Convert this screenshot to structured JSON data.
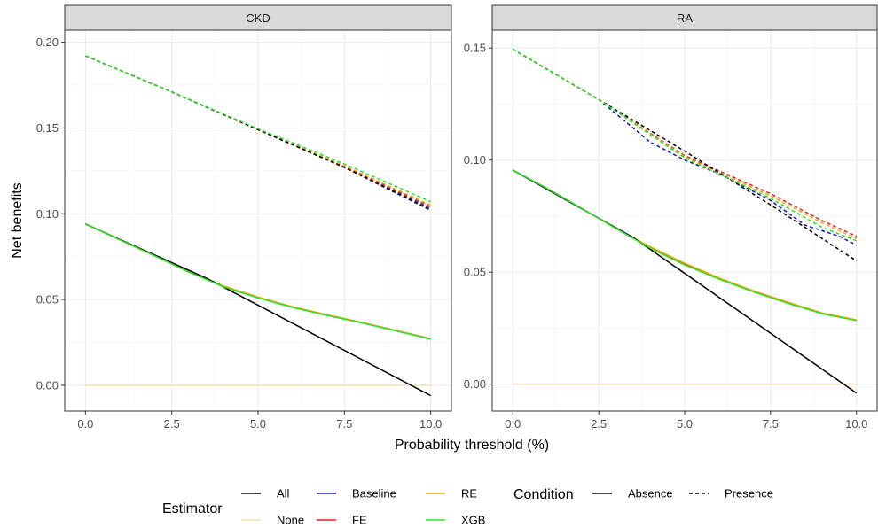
{
  "chart_data": {
    "type": "line",
    "xlabel": "Probability threshold (%)",
    "ylabel": "Net benefits",
    "legend_position": "bottom",
    "grid": true,
    "colors": {
      "All": "#000000",
      "None": "#f5deb3",
      "Baseline": "#1515b5",
      "FE": "#e02020",
      "RE": "#f0a800",
      "XGB": "#2ee02e"
    },
    "legend": {
      "estimator_title": "Estimator",
      "estimator_items": [
        "All",
        "None",
        "Baseline",
        "FE",
        "RE",
        "XGB"
      ],
      "condition_title": "Condition",
      "condition_items": [
        {
          "label": "Absence",
          "dash": "solid"
        },
        {
          "label": "Presence",
          "dash": "dashed"
        }
      ]
    },
    "panels": [
      {
        "title": "CKD",
        "xlim": [
          -0.6,
          10.6
        ],
        "ylim": [
          -0.015,
          0.207
        ],
        "xticks": [
          "0.0",
          "2.5",
          "5.0",
          "7.5",
          "10.0"
        ],
        "yticks": [
          "0.00",
          "0.05",
          "0.10",
          "0.15",
          "0.20"
        ],
        "series": [
          {
            "name": "None",
            "condition": "Absence",
            "x": [
              0,
              10
            ],
            "y": [
              0,
              0
            ]
          },
          {
            "name": "All",
            "condition": "Absence",
            "x": [
              0,
              3.5,
              10
            ],
            "y": [
              0.094,
              0.0625,
              -0.006
            ]
          },
          {
            "name": "Baseline",
            "condition": "Absence",
            "x": [
              0,
              1,
              2,
              3,
              4,
              5,
              6,
              7,
              8,
              9,
              10
            ],
            "y": [
              0.094,
              0.0848,
              0.0755,
              0.066,
              0.0575,
              0.051,
              0.0455,
              0.0408,
              0.0365,
              0.0318,
              0.027
            ]
          },
          {
            "name": "FE",
            "condition": "Absence",
            "x": [
              0,
              1,
              2,
              3,
              4,
              5,
              6,
              7,
              8,
              9,
              10
            ],
            "y": [
              0.094,
              0.0848,
              0.0755,
              0.066,
              0.0577,
              0.0512,
              0.0457,
              0.041,
              0.0366,
              0.0319,
              0.0271
            ]
          },
          {
            "name": "RE",
            "condition": "Absence",
            "x": [
              0,
              1,
              2,
              3,
              4,
              5,
              6,
              7,
              8,
              9,
              10
            ],
            "y": [
              0.094,
              0.0848,
              0.0755,
              0.066,
              0.0579,
              0.0514,
              0.0458,
              0.0411,
              0.0367,
              0.032,
              0.0272
            ]
          },
          {
            "name": "XGB",
            "condition": "Absence",
            "x": [
              0,
              1,
              2,
              3,
              4,
              5,
              6,
              7,
              8,
              9,
              10
            ],
            "y": [
              0.094,
              0.0848,
              0.0755,
              0.066,
              0.0574,
              0.0509,
              0.0454,
              0.0407,
              0.0364,
              0.0317,
              0.0269
            ]
          },
          {
            "name": "All",
            "condition": "Presence",
            "x": [
              0,
              2.5,
              5,
              7.5,
              10
            ],
            "y": [
              0.192,
              0.171,
              0.149,
              0.127,
              0.102
            ]
          },
          {
            "name": "Baseline",
            "condition": "Presence",
            "x": [
              0,
              2.5,
              5,
              7.5,
              10
            ],
            "y": [
              0.192,
              0.171,
              0.149,
              0.127,
              0.103
            ]
          },
          {
            "name": "FE",
            "condition": "Presence",
            "x": [
              0,
              2.5,
              5,
              7.5,
              10
            ],
            "y": [
              0.192,
              0.171,
              0.149,
              0.1275,
              0.104
            ]
          },
          {
            "name": "RE",
            "condition": "Presence",
            "x": [
              0,
              2.5,
              5,
              7.5,
              10
            ],
            "y": [
              0.192,
              0.171,
              0.149,
              0.128,
              0.105
            ]
          },
          {
            "name": "XGB",
            "condition": "Presence",
            "x": [
              0,
              2.5,
              5,
              7.5,
              10
            ],
            "y": [
              0.192,
              0.171,
              0.1495,
              0.129,
              0.107
            ]
          }
        ]
      },
      {
        "title": "RA",
        "xlim": [
          -0.6,
          10.6
        ],
        "ylim": [
          -0.012,
          0.158
        ],
        "xticks": [
          "0.0",
          "2.5",
          "5.0",
          "7.5",
          "10.0"
        ],
        "yticks": [
          "0.00",
          "0.05",
          "0.10",
          "0.15"
        ],
        "series": [
          {
            "name": "None",
            "condition": "Absence",
            "x": [
              0,
              10
            ],
            "y": [
              0,
              0
            ]
          },
          {
            "name": "All",
            "condition": "Absence",
            "x": [
              0,
              3.5,
              10
            ],
            "y": [
              0.0955,
              0.0655,
              -0.004
            ]
          },
          {
            "name": "Baseline",
            "condition": "Absence",
            "x": [
              0,
              1,
              2,
              3,
              4,
              5,
              6,
              7,
              8,
              9,
              10
            ],
            "y": [
              0.0955,
              0.0873,
              0.0785,
              0.0695,
              0.0608,
              0.0534,
              0.047,
              0.0413,
              0.0362,
              0.0315,
              0.0285
            ]
          },
          {
            "name": "FE",
            "condition": "Absence",
            "x": [
              0,
              1,
              2,
              3,
              4,
              5,
              6,
              7,
              8,
              9,
              10
            ],
            "y": [
              0.0955,
              0.0873,
              0.0785,
              0.0695,
              0.0611,
              0.0537,
              0.0472,
              0.0415,
              0.0364,
              0.0316,
              0.0286
            ]
          },
          {
            "name": "RE",
            "condition": "Absence",
            "x": [
              0,
              1,
              2,
              3,
              4,
              5,
              6,
              7,
              8,
              9,
              10
            ],
            "y": [
              0.0955,
              0.0873,
              0.0785,
              0.0695,
              0.0613,
              0.054,
              0.0474,
              0.0417,
              0.0366,
              0.0318,
              0.0287
            ]
          },
          {
            "name": "XGB",
            "condition": "Absence",
            "x": [
              0,
              1,
              2,
              3,
              4,
              5,
              6,
              7,
              8,
              9,
              10
            ],
            "y": [
              0.0955,
              0.0873,
              0.0785,
              0.0695,
              0.0607,
              0.0532,
              0.0469,
              0.0412,
              0.0361,
              0.0314,
              0.0284
            ]
          },
          {
            "name": "All",
            "condition": "Presence",
            "x": [
              0,
              2.5,
              5,
              7.5,
              10
            ],
            "y": [
              0.1495,
              0.127,
              0.104,
              0.08,
              0.055
            ]
          },
          {
            "name": "Baseline",
            "condition": "Presence",
            "x": [
              0,
              2.5,
              4,
              5,
              6,
              7.5,
              8.5,
              9.5,
              10
            ],
            "y": [
              0.1495,
              0.127,
              0.108,
              0.1,
              0.094,
              0.082,
              0.071,
              0.066,
              0.062
            ]
          },
          {
            "name": "FE",
            "condition": "Presence",
            "x": [
              0,
              2.5,
              5,
              7.5,
              9,
              10
            ],
            "y": [
              0.1495,
              0.127,
              0.102,
              0.085,
              0.073,
              0.066
            ]
          },
          {
            "name": "RE",
            "condition": "Presence",
            "x": [
              0,
              2.5,
              5,
              7.5,
              9,
              10
            ],
            "y": [
              0.1495,
              0.127,
              0.1015,
              0.084,
              0.072,
              0.065
            ]
          },
          {
            "name": "XGB",
            "condition": "Presence",
            "x": [
              0,
              2.5,
              5,
              7.5,
              9,
              10
            ],
            "y": [
              0.1495,
              0.127,
              0.101,
              0.083,
              0.07,
              0.064
            ]
          }
        ]
      }
    ]
  }
}
